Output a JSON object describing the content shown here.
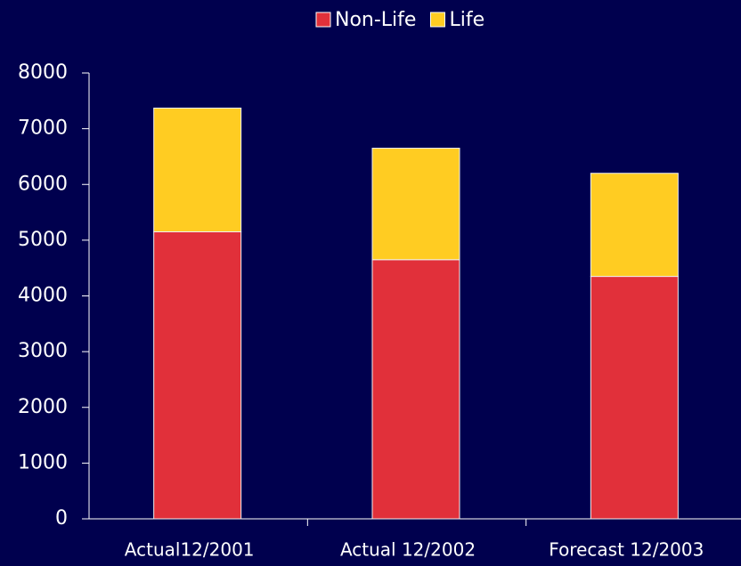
{
  "chart_data": {
    "type": "stacked_bar",
    "categories": [
      "Actual12/2001",
      "Actual 12/2002",
      "Forecast 12/2003"
    ],
    "series": [
      {
        "name": "Non-Life",
        "color": "#e1303a",
        "values": [
          5150,
          4650,
          4350
        ]
      },
      {
        "name": "Life",
        "color": "#ffcc22",
        "values": [
          2220,
          2000,
          1850
        ]
      }
    ],
    "ylim": [
      0,
      8000
    ],
    "yticks": [
      0,
      1000,
      2000,
      3000,
      4000,
      5000,
      6000,
      7000,
      8000
    ],
    "legend": "top"
  }
}
